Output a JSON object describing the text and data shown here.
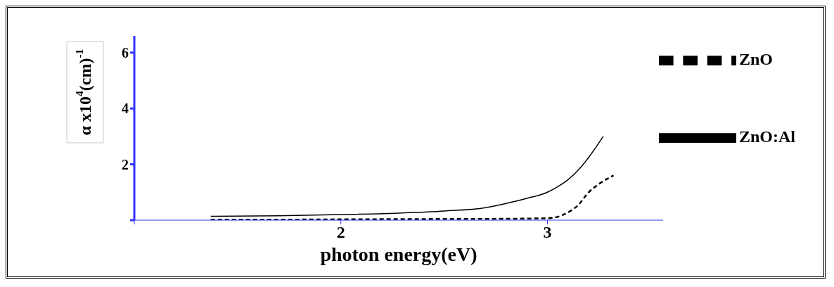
{
  "chart_data": {
    "type": "line",
    "xlabel": "photon energy(eV)",
    "ylabel": "α x10$^{4}$(cm)$^{-1}$",
    "xlim": [
      1,
      3.56
    ],
    "xticks": [
      {
        "value": 1,
        "label": null
      },
      2,
      3
    ],
    "ylim": [
      0,
      6.6
    ],
    "yticks": [
      {
        "value": 0,
        "label": null
      },
      2,
      4,
      6
    ],
    "legend": "top right",
    "marker": "none",
    "series": [
      {
        "name": "ZnO",
        "color": "#000000",
        "line_style": "dashed",
        "x": [
          1.37,
          1.7,
          2.0,
          2.4,
          2.8,
          3.0,
          3.05,
          3.1,
          3.15,
          3.2,
          3.25,
          3.32
        ],
        "values": [
          0.02,
          0.02,
          0.03,
          0.04,
          0.05,
          0.07,
          0.12,
          0.28,
          0.55,
          1.0,
          1.3,
          1.6
        ]
      },
      {
        "name": "ZnO:Al",
        "color": "#000000",
        "line_style": "solid",
        "x": [
          1.37,
          1.7,
          2.0,
          2.3,
          2.5,
          2.7,
          2.8,
          2.9,
          3.0,
          3.05,
          3.1,
          3.15,
          3.2,
          3.27
        ],
        "values": [
          0.14,
          0.16,
          0.2,
          0.26,
          0.33,
          0.45,
          0.6,
          0.78,
          1.0,
          1.2,
          1.45,
          1.8,
          2.25,
          3.0
        ]
      }
    ]
  }
}
